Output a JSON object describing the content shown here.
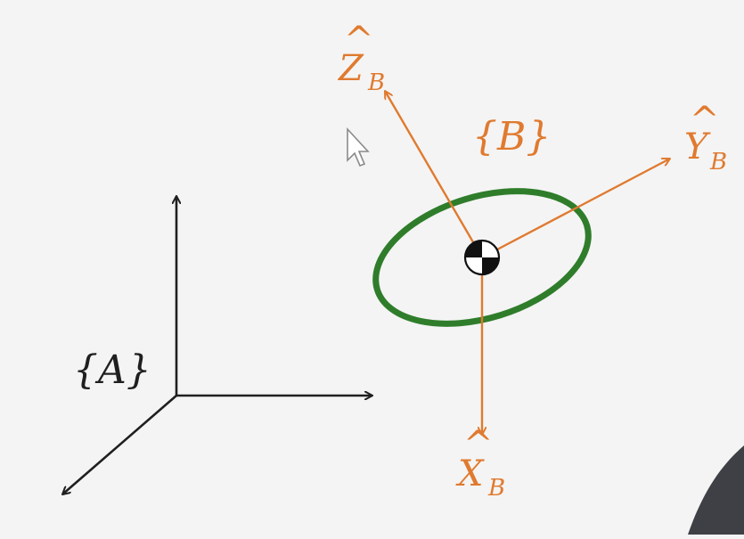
{
  "colors": {
    "background": "#f4f4f4",
    "frame_a": "#1f1f1f",
    "frame_b": "#e07a2f",
    "body_ellipse": "#2f7d2b",
    "center_mark_dark": "#111111",
    "center_mark_light": "#ffffff",
    "cursor_fill": "#ffffff",
    "cursor_stroke": "#8a8a8a",
    "corner_object": "#3e4046"
  },
  "frame_a": {
    "label": "{A}"
  },
  "frame_b": {
    "label": "{B}",
    "axes": {
      "x": {
        "letter": "X",
        "hat": "^",
        "subscript": "B"
      },
      "y": {
        "letter": "Y",
        "hat": "^",
        "subscript": "B"
      },
      "z": {
        "letter": "Z",
        "hat": "^",
        "subscript": "B"
      }
    }
  },
  "icons": {
    "cursor": "mouse-cursor-icon",
    "center_of_mass": "center-of-mass-icon"
  }
}
